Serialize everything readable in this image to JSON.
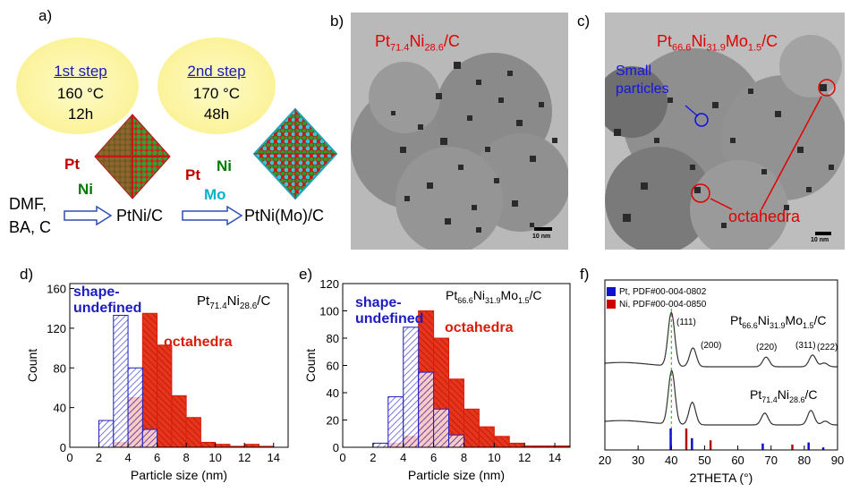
{
  "panel_labels": {
    "a": "a)",
    "b": "b)",
    "c": "c)",
    "d": "d)",
    "e": "e)",
    "f": "f)"
  },
  "synthesis": {
    "step1": {
      "title": "1st step",
      "temp": "160 °C",
      "time": "12h"
    },
    "step2": {
      "title": "2nd step",
      "temp": "170 °C",
      "time": "48h"
    },
    "reagents_line1": "DMF,",
    "reagents_line2": "BA, C",
    "intermediate": "PtNi/C",
    "product": "PtNi(Mo)/C",
    "elements1": {
      "pt": "Pt",
      "ni": "Ni"
    },
    "elements2": {
      "pt": "Pt",
      "ni": "Ni",
      "mo": "Mo"
    }
  },
  "tem_b": {
    "title_main": "Pt",
    "sub1": "71.4",
    "mid": "Ni",
    "sub2": "28.6",
    "tail": "/C",
    "scalebar": "10 nm"
  },
  "tem_c": {
    "title_main": "Pt",
    "sub1": "66.6",
    "mid1": "Ni",
    "sub2": "31.9",
    "mid2": "Mo",
    "sub3": "1.5",
    "tail": "/C",
    "small_label_1": "Small",
    "small_label_2": "particles",
    "octa_label": "octahedra",
    "scalebar": "10 nm"
  },
  "chart_data": [
    {
      "type": "bar",
      "panel": "d",
      "composition": {
        "a": "Pt",
        "s1": "71.4",
        "b": "Ni",
        "s2": "28.6",
        "c": "/C"
      },
      "xlabel": "Particle size (nm)",
      "ylabel": "Count",
      "xlim": [
        0,
        15
      ],
      "ylim": [
        0,
        165
      ],
      "xticks": [
        "0",
        "2",
        "4",
        "6",
        "8",
        "10",
        "12",
        "14"
      ],
      "yticks": [
        "0",
        "40",
        "80",
        "120",
        "160"
      ],
      "bin_width": 1,
      "series": [
        {
          "name": "shape-undefined",
          "label1": "shape-",
          "label2": "undefined",
          "color": "#1e1ec0",
          "bins": [
            2,
            3,
            4,
            5
          ],
          "values": [
            27,
            133,
            80,
            18
          ]
        },
        {
          "name": "octahedra",
          "label1": "octahedra",
          "color": "#d81e0a",
          "bins": [
            3,
            4,
            5,
            6,
            7,
            8,
            9,
            10,
            11,
            12,
            13
          ],
          "values": [
            5,
            50,
            135,
            103,
            52,
            30,
            5,
            3,
            1,
            3,
            1
          ]
        }
      ]
    },
    {
      "type": "bar",
      "panel": "e",
      "composition": {
        "a": "Pt",
        "s1": "66.6",
        "b": "Ni",
        "s2": "31.9",
        "c": "Mo",
        "s3": "1.5",
        "d": "/C"
      },
      "xlabel": "Particle size (nm)",
      "ylabel": "Count",
      "xlim": [
        0,
        15
      ],
      "ylim": [
        0,
        120
      ],
      "xticks": [
        "0",
        "2",
        "4",
        "6",
        "8",
        "10",
        "12",
        "14"
      ],
      "yticks": [
        "0",
        "20",
        "40",
        "60",
        "80",
        "100",
        "120"
      ],
      "bin_width": 1,
      "series": [
        {
          "name": "shape-undefined",
          "label1": "shape-",
          "label2": "undefined",
          "color": "#1e1ec0",
          "bins": [
            2,
            3,
            4,
            5,
            6,
            7
          ],
          "values": [
            3,
            37,
            88,
            55,
            28,
            9
          ]
        },
        {
          "name": "octahedra",
          "label1": "octahedra",
          "color": "#d81e0a",
          "bins": [
            3,
            4,
            5,
            6,
            7,
            8,
            9,
            10,
            11,
            12,
            13,
            14
          ],
          "values": [
            3,
            8,
            100,
            80,
            50,
            28,
            15,
            8,
            3,
            1,
            1,
            1
          ]
        }
      ]
    },
    {
      "type": "line",
      "panel": "f",
      "xlabel": "2THETA (°)",
      "xlim": [
        20,
        90
      ],
      "xticks": [
        "20",
        "30",
        "40",
        "50",
        "60",
        "70",
        "80",
        "90"
      ],
      "legend": [
        {
          "label": "Pt, PDF#00-004-0802",
          "color": "#1010d0"
        },
        {
          "label": "Ni, PDF#00-004-0850",
          "color": "#cc0000"
        }
      ],
      "peak_labels": [
        "(111)",
        "(200)",
        "(220)",
        "(311)",
        "(222)"
      ],
      "series": [
        {
          "name": "Pt66.6Ni31.9Mo1.5/C",
          "label": {
            "a": "Pt",
            "s1": "66.6",
            "b": "Ni",
            "s2": "31.9",
            "c": "Mo",
            "s3": "1.5",
            "d": "/C"
          },
          "offset": 1.0,
          "peaks": [
            [
              40.0,
              1.0
            ],
            [
              46.5,
              0.35
            ],
            [
              68.5,
              0.18
            ],
            [
              82.5,
              0.22
            ],
            [
              86.0,
              0.07
            ]
          ]
        },
        {
          "name": "Pt71.4Ni28.6/C",
          "label": {
            "a": "Pt",
            "s1": "71.4",
            "b": "Ni",
            "s2": "28.6",
            "c": "/C"
          },
          "offset": 0.0,
          "peaks": [
            [
              40.1,
              1.0
            ],
            [
              46.3,
              0.42
            ],
            [
              68.1,
              0.22
            ],
            [
              82.0,
              0.27
            ],
            [
              86.3,
              0.07
            ]
          ]
        }
      ],
      "reference_pt": [
        [
          39.8,
          1.0
        ],
        [
          46.2,
          0.55
        ],
        [
          67.5,
          0.3
        ],
        [
          81.3,
          0.35
        ],
        [
          85.7,
          0.12
        ]
      ],
      "reference_ni": [
        [
          44.5,
          1.0
        ],
        [
          51.8,
          0.45
        ],
        [
          76.4,
          0.25
        ]
      ],
      "dashed_line_x": 40.0
    }
  ]
}
